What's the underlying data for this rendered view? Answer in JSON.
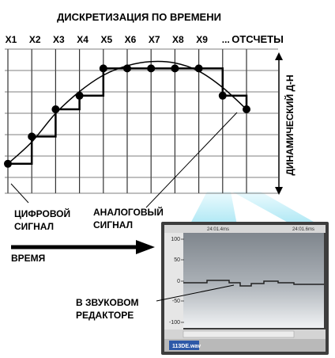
{
  "title": "ДИСКРЕТИЗАЦИЯ ПО ВРЕМЕНИ",
  "sample_labels": [
    "X1",
    "X2",
    "X3",
    "X4",
    "X5",
    "X6",
    "X7",
    "X8",
    "X9",
    "..."
  ],
  "samples_label": "ОТСЧЕТЫ",
  "dynamic_range_label": "ДИНАМИЧЕСКИЙ Д-Н",
  "digital_signal_label": [
    "ЦИФРОВОЙ",
    "СИГНАЛ"
  ],
  "analog_signal_label": [
    "АНАЛОГОВЫЙ",
    "СИГНАЛ"
  ],
  "time_label": "ВРЕМЯ",
  "editor_label": [
    "В ЗВУКОВОМ",
    "РЕДАКТОРЕ"
  ],
  "editor": {
    "timecodes": [
      "24:01.4ms",
      "24:01.6ms"
    ],
    "y_ticks": [
      "100",
      "50",
      "0",
      "-50",
      "-100"
    ],
    "file_tab": "113DE.wav"
  },
  "chart_data": {
    "type": "line",
    "title": "ДИСКРЕТИЗАЦИЯ ПО ВРЕМЕНИ",
    "x": [
      1,
      2,
      3,
      4,
      5,
      6,
      7,
      8,
      9,
      10,
      11
    ],
    "samples": [
      1,
      3,
      5,
      6,
      8,
      8,
      8,
      8,
      8,
      6,
      5
    ],
    "ylim": [
      0,
      10
    ],
    "grid": true
  },
  "colors": {
    "line": "#000000",
    "grid": "#333333",
    "editor_bg": "#8c939a",
    "highlight": "#bfeef7"
  }
}
